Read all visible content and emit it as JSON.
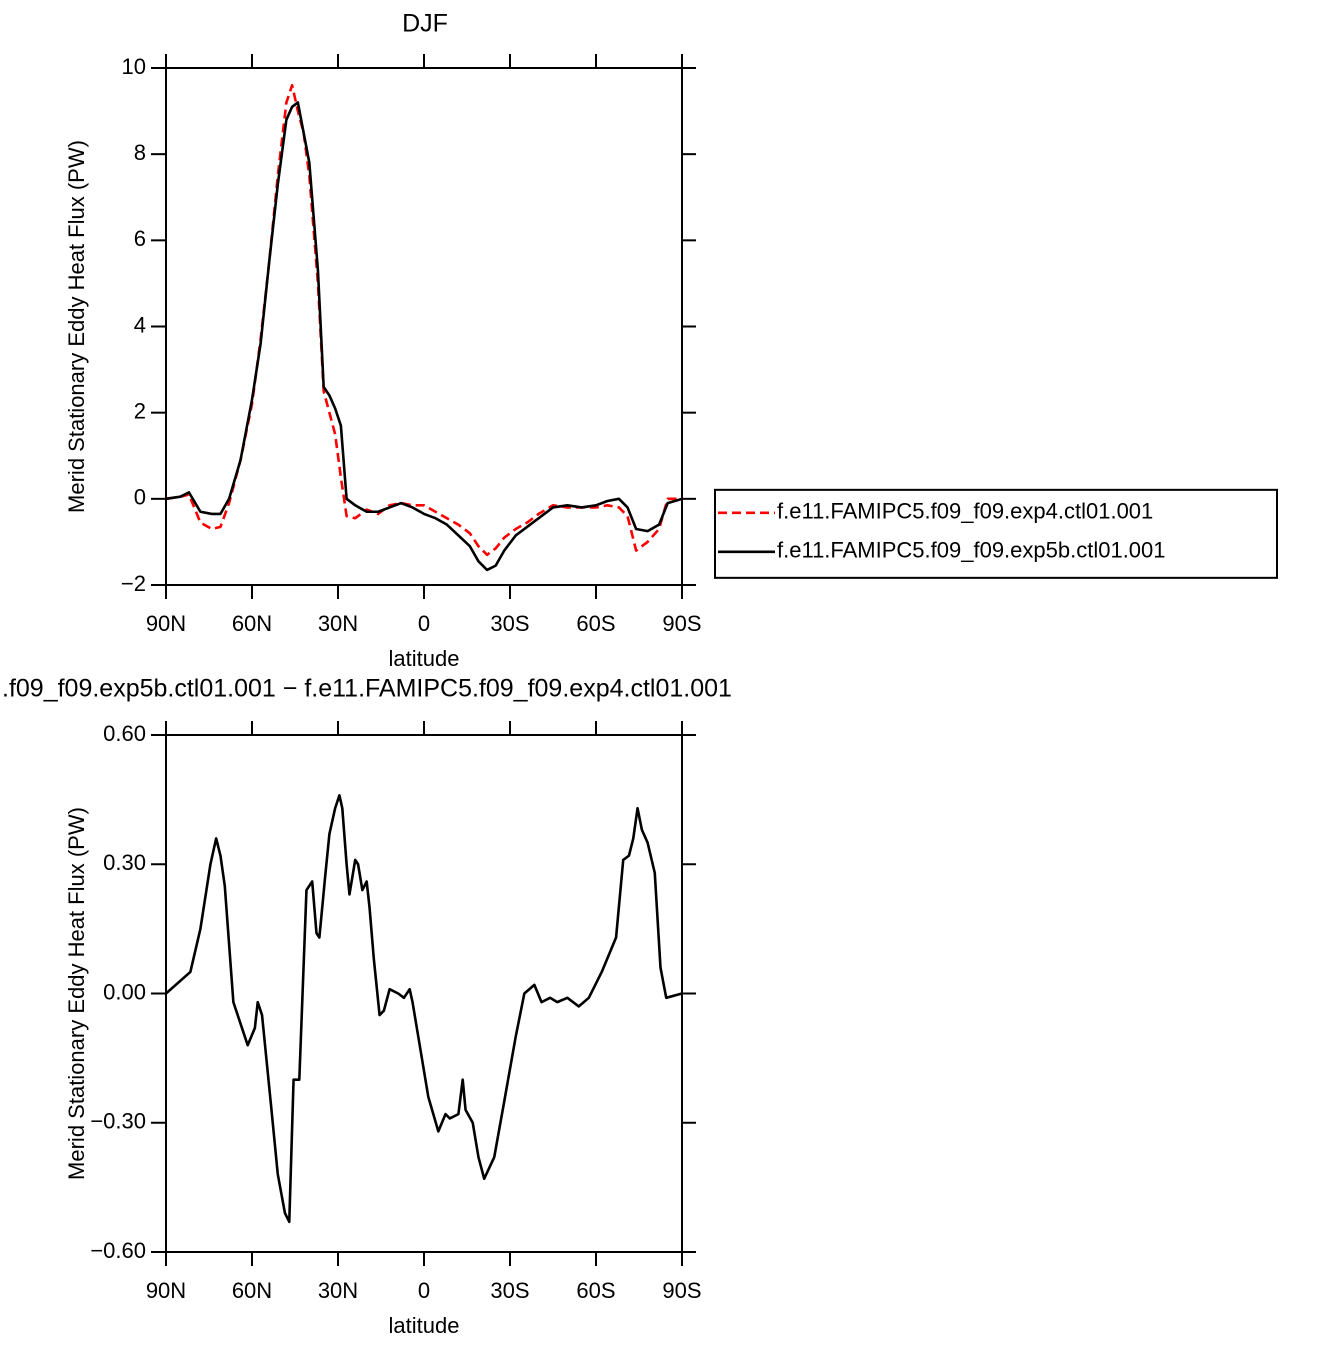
{
  "chart_data": [
    {
      "type": "line",
      "title": "DJF",
      "xlabel": "latitude",
      "ylabel": "Merid Stationary Eddy Heat Flux (PW)",
      "xlim": [
        90,
        -90
      ],
      "ylim": [
        -2,
        10
      ],
      "xticks": [
        {
          "value": 90,
          "label": "90N"
        },
        {
          "value": 60,
          "label": "60N"
        },
        {
          "value": 30,
          "label": "30N"
        },
        0,
        {
          "value": -30,
          "label": "30S"
        },
        {
          "value": -60,
          "label": "60S"
        },
        {
          "value": -90,
          "label": "90S"
        }
      ],
      "yticks": [
        {
          "value": -2,
          "label": "−2"
        },
        0,
        2,
        4,
        6,
        8,
        10
      ],
      "legend": "right",
      "x": [
        90,
        85,
        82,
        78,
        74,
        71,
        68,
        64,
        60,
        57,
        54,
        51,
        48,
        46,
        44,
        42,
        40,
        37,
        35,
        33,
        31,
        29,
        27,
        24,
        20,
        16,
        12,
        8,
        4,
        0,
        -4,
        -8,
        -12,
        -16,
        -19,
        -22,
        -25,
        -28,
        -32,
        -36,
        -40,
        -45,
        -50,
        -55,
        -60,
        -64,
        -68,
        -71,
        -74,
        -78,
        -82,
        -85,
        -90
      ],
      "series": [
        {
          "name": "f.e11.FAMIPC5.f09_f09.exp4.ctl01.001",
          "color": "#ff0000",
          "line_style": "dashed",
          "values": [
            0,
            0.05,
            0.1,
            -0.55,
            -0.7,
            -0.65,
            -0.1,
            0.9,
            2.2,
            3.7,
            5.5,
            7.5,
            9.2,
            9.6,
            9.0,
            8.5,
            7.5,
            5.0,
            2.5,
            2.0,
            1.5,
            0.5,
            -0.4,
            -0.45,
            -0.25,
            -0.35,
            -0.15,
            -0.1,
            -0.15,
            -0.15,
            -0.3,
            -0.45,
            -0.6,
            -0.8,
            -1.1,
            -1.3,
            -1.15,
            -0.9,
            -0.7,
            -0.55,
            -0.35,
            -0.15,
            -0.2,
            -0.2,
            -0.2,
            -0.15,
            -0.2,
            -0.4,
            -1.2,
            -1.0,
            -0.7,
            0,
            0
          ]
        },
        {
          "name": "f.e11.FAMIPC5.f09_f09.exp5b.ctl01.001",
          "color": "#000000",
          "line_style": "solid",
          "values": [
            0,
            0.05,
            0.15,
            -0.3,
            -0.35,
            -0.35,
            0,
            0.9,
            2.3,
            3.6,
            5.5,
            7.3,
            8.8,
            9.1,
            9.2,
            8.5,
            7.8,
            5.3,
            2.6,
            2.4,
            2.1,
            1.7,
            0,
            -0.15,
            -0.3,
            -0.3,
            -0.2,
            -0.1,
            -0.2,
            -0.35,
            -0.45,
            -0.6,
            -0.85,
            -1.1,
            -1.45,
            -1.65,
            -1.55,
            -1.2,
            -0.85,
            -0.65,
            -0.45,
            -0.2,
            -0.15,
            -0.2,
            -0.15,
            -0.05,
            0.0,
            -0.2,
            -0.7,
            -0.75,
            -0.6,
            -0.1,
            0
          ]
        }
      ]
    },
    {
      "type": "line",
      "title": ".f09_f09.exp5b.ctl01.001 − f.e11.FAMIPC5.f09_f09.exp4.ctl01.001",
      "xlabel": "latitude",
      "ylabel": "Merid Stationary Eddy Heat Flux (PW)",
      "xlim": [
        90,
        -90
      ],
      "ylim": [
        -0.6,
        0.6
      ],
      "xticks": [
        {
          "value": 90,
          "label": "90N"
        },
        {
          "value": 60,
          "label": "60N"
        },
        {
          "value": 30,
          "label": "30N"
        },
        0,
        {
          "value": -30,
          "label": "30S"
        },
        {
          "value": -60,
          "label": "60S"
        },
        {
          "value": -90,
          "label": "90S"
        }
      ],
      "yticks": [
        {
          "value": -0.6,
          "label": "−0.60"
        },
        {
          "value": -0.3,
          "label": "−0.30"
        },
        {
          "value": 0,
          "label": "0.00"
        },
        {
          "value": 0.3,
          "label": "0.30"
        },
        {
          "value": 0.6,
          "label": "0.60"
        }
      ],
      "x": [
        90,
        81.5,
        78,
        74.5,
        72.5,
        71,
        69.5,
        66.5,
        64,
        61.5,
        59,
        58,
        56.5,
        53.5,
        51,
        48.5,
        47,
        45.5,
        43.5,
        41,
        39,
        37.5,
        36.5,
        34.5,
        33,
        31,
        29.5,
        28.5,
        27,
        26,
        24,
        23,
        21.5,
        20,
        19,
        17.5,
        15.5,
        14,
        12,
        9,
        7,
        5,
        4,
        1.5,
        -1.5,
        -5,
        -7.5,
        -9,
        -12,
        -13.5,
        -14.5,
        -17,
        -19,
        -21,
        -24.5,
        -28,
        -32,
        -35,
        -38.5,
        -41,
        -44,
        -46.5,
        -50,
        -54,
        -57.5,
        -62,
        -67,
        -69.5,
        -71.5,
        -73,
        -74.5,
        -76,
        -78,
        -80.5,
        -82.5,
        -84.5,
        -90
      ],
      "series": [
        {
          "color": "#000000",
          "line_style": "solid",
          "values": [
            0,
            0.05,
            0.15,
            0.3,
            0.36,
            0.32,
            0.25,
            -0.02,
            -0.07,
            -0.12,
            -0.08,
            -0.02,
            -0.05,
            -0.25,
            -0.42,
            -0.51,
            -0.53,
            -0.2,
            -0.2,
            0.24,
            0.26,
            0.14,
            0.13,
            0.27,
            0.37,
            0.43,
            0.46,
            0.43,
            0.3,
            0.23,
            0.31,
            0.3,
            0.24,
            0.26,
            0.2,
            0.08,
            -0.05,
            -0.04,
            0.01,
            0.0,
            -0.01,
            0.01,
            -0.02,
            -0.12,
            -0.24,
            -0.32,
            -0.28,
            -0.29,
            -0.28,
            -0.2,
            -0.27,
            -0.3,
            -0.38,
            -0.43,
            -0.38,
            -0.25,
            -0.1,
            0.0,
            0.02,
            -0.02,
            -0.01,
            -0.02,
            -0.01,
            -0.03,
            -0.01,
            0.05,
            0.13,
            0.31,
            0.32,
            0.36,
            0.43,
            0.38,
            0.35,
            0.28,
            0.06,
            -0.01,
            0
          ]
        }
      ]
    }
  ]
}
